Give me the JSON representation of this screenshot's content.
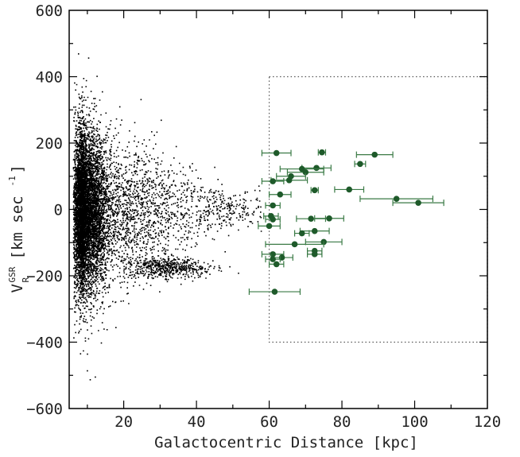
{
  "chart_data": {
    "type": "scatter",
    "title": "",
    "xlabel": "Galactocentric Distance [kpc]",
    "ylabel": {
      "main": "V",
      "superscript": "GSR",
      "subscript": "R",
      "units": "[km sec",
      "units_exp": "-1",
      "units_close": "]"
    },
    "xlim": [
      5,
      120
    ],
    "ylim": [
      -600,
      600
    ],
    "xticks": [
      20,
      40,
      60,
      80,
      100,
      120
    ],
    "yticks": [
      -600,
      -400,
      -200,
      0,
      200,
      400,
      600
    ],
    "grid": false,
    "legend": "none",
    "colors": {
      "background_stars": "#000000",
      "objects": "#1e5a2a",
      "errorbars": "#3a7a45",
      "box": "#555555",
      "frame": "#000000"
    },
    "selection_box": {
      "x_range": [
        60,
        120
      ],
      "y_range": [
        -400,
        400
      ],
      "style": "dotted"
    },
    "background_stars": {
      "description": "dense cloud of field stars",
      "approx_count": 9000,
      "clusters": [
        {
          "x_center": 9,
          "x_spread": 3,
          "y_center": 0,
          "y_spread": 120,
          "weight": 0.7
        },
        {
          "x_center": 20,
          "x_spread": 9,
          "y_center": 0,
          "y_spread": 130,
          "weight": 0.2
        },
        {
          "x_center": 32,
          "x_spread": 6,
          "y_center": -175,
          "y_spread": 25,
          "weight": 0.06
        },
        {
          "x_center": 45,
          "x_spread": 8,
          "y_center": 0,
          "y_spread": 90,
          "weight": 0.04
        }
      ]
    },
    "series": [
      {
        "points": [
          {
            "x": 62,
            "y": 170,
            "xerr": 4
          },
          {
            "x": 74.5,
            "y": 172,
            "xerr": 1
          },
          {
            "x": 89,
            "y": 165,
            "xerr": 5
          },
          {
            "x": 85,
            "y": 137,
            "xerr": 1.5
          },
          {
            "x": 73,
            "y": 125,
            "xerr": 4
          },
          {
            "x": 69,
            "y": 122,
            "xerr": 6
          },
          {
            "x": 70,
            "y": 112,
            "xerr": 5
          },
          {
            "x": 66,
            "y": 100,
            "xerr": 4
          },
          {
            "x": 65.5,
            "y": 88,
            "xerr": 5
          },
          {
            "x": 61,
            "y": 85,
            "xerr": 3
          },
          {
            "x": 72.5,
            "y": 58,
            "xerr": 1
          },
          {
            "x": 82,
            "y": 60,
            "xerr": 4
          },
          {
            "x": 63,
            "y": 45,
            "xerr": 3
          },
          {
            "x": 95,
            "y": 32,
            "xerr": 10
          },
          {
            "x": 101,
            "y": 20,
            "xerr": 7
          },
          {
            "x": 61,
            "y": 12,
            "xerr": 2
          },
          {
            "x": 60.5,
            "y": -20,
            "xerr": 2
          },
          {
            "x": 61,
            "y": -30,
            "xerr": 2
          },
          {
            "x": 71.5,
            "y": -28,
            "xerr": 4
          },
          {
            "x": 76.5,
            "y": -27,
            "xerr": 4
          },
          {
            "x": 60,
            "y": -50,
            "xerr": 3
          },
          {
            "x": 72.5,
            "y": -65,
            "xerr": 4
          },
          {
            "x": 69,
            "y": -72,
            "xerr": 2
          },
          {
            "x": 75,
            "y": -98,
            "xerr": 5
          },
          {
            "x": 67,
            "y": -105,
            "xerr": 8
          },
          {
            "x": 72.5,
            "y": -125,
            "xerr": 2
          },
          {
            "x": 72.5,
            "y": -135,
            "xerr": 2
          },
          {
            "x": 61,
            "y": -135,
            "xerr": 3
          },
          {
            "x": 63.5,
            "y": -145,
            "xerr": 3
          },
          {
            "x": 61,
            "y": -150,
            "xerr": 2
          },
          {
            "x": 62,
            "y": -165,
            "xerr": 2
          },
          {
            "x": 61.5,
            "y": -248,
            "xerr": 7
          }
        ]
      }
    ]
  }
}
